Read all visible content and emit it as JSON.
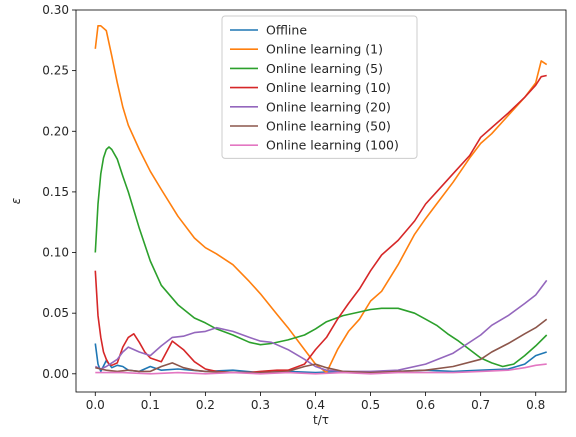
{
  "chart_data": {
    "type": "line",
    "xlabel": "t/τ",
    "ylabel": "ε",
    "xlim": [
      -0.035,
      0.855
    ],
    "ylim": [
      -0.015,
      0.3
    ],
    "xticks": [
      0.0,
      0.1,
      0.2,
      0.3,
      0.4,
      0.5,
      0.6,
      0.7,
      0.8
    ],
    "xtick_labels": [
      "0.0",
      "0.1",
      "0.2",
      "0.3",
      "0.4",
      "0.5",
      "0.6",
      "0.7",
      "0.8"
    ],
    "yticks": [
      0.0,
      0.05,
      0.1,
      0.15,
      0.2,
      0.25,
      0.3
    ],
    "ytick_labels": [
      "0.00",
      "0.05",
      "0.10",
      "0.15",
      "0.20",
      "0.25",
      "0.30"
    ],
    "grid": false,
    "legend_position": "top-center",
    "series": [
      {
        "name": "Offline",
        "color": "#1f77b4",
        "x": [
          0.0,
          0.005,
          0.01,
          0.02,
          0.03,
          0.04,
          0.05,
          0.06,
          0.08,
          0.1,
          0.12,
          0.15,
          0.2,
          0.25,
          0.3,
          0.35,
          0.4,
          0.45,
          0.5,
          0.55,
          0.6,
          0.65,
          0.7,
          0.75,
          0.78,
          0.8,
          0.82
        ],
        "y": [
          0.025,
          0.008,
          0.002,
          0.011,
          0.005,
          0.007,
          0.006,
          0.003,
          0.002,
          0.006,
          0.003,
          0.004,
          0.002,
          0.003,
          0.001,
          0.002,
          0.001,
          0.002,
          0.001,
          0.002,
          0.003,
          0.002,
          0.003,
          0.004,
          0.008,
          0.015,
          0.018
        ]
      },
      {
        "name": "Online learning (1)",
        "color": "#ff7f0e",
        "x": [
          0.0,
          0.005,
          0.01,
          0.02,
          0.03,
          0.04,
          0.05,
          0.06,
          0.08,
          0.1,
          0.12,
          0.15,
          0.18,
          0.2,
          0.22,
          0.25,
          0.28,
          0.3,
          0.33,
          0.35,
          0.38,
          0.4,
          0.42,
          0.44,
          0.46,
          0.48,
          0.5,
          0.52,
          0.55,
          0.58,
          0.6,
          0.62,
          0.65,
          0.68,
          0.7,
          0.72,
          0.75,
          0.78,
          0.8,
          0.81,
          0.82
        ],
        "y": [
          0.268,
          0.287,
          0.287,
          0.283,
          0.262,
          0.24,
          0.22,
          0.205,
          0.185,
          0.167,
          0.152,
          0.13,
          0.112,
          0.104,
          0.099,
          0.09,
          0.076,
          0.066,
          0.049,
          0.038,
          0.02,
          0.008,
          0.001,
          0.02,
          0.035,
          0.045,
          0.06,
          0.068,
          0.09,
          0.115,
          0.128,
          0.14,
          0.158,
          0.178,
          0.19,
          0.198,
          0.213,
          0.228,
          0.24,
          0.258,
          0.255
        ]
      },
      {
        "name": "Online learning (5)",
        "color": "#2ca02c",
        "x": [
          0.0,
          0.005,
          0.01,
          0.015,
          0.02,
          0.025,
          0.03,
          0.04,
          0.05,
          0.06,
          0.08,
          0.1,
          0.12,
          0.15,
          0.18,
          0.2,
          0.22,
          0.25,
          0.28,
          0.3,
          0.32,
          0.35,
          0.38,
          0.4,
          0.42,
          0.45,
          0.48,
          0.5,
          0.52,
          0.55,
          0.58,
          0.6,
          0.62,
          0.64,
          0.66,
          0.68,
          0.7,
          0.72,
          0.74,
          0.76,
          0.78,
          0.8,
          0.82
        ],
        "y": [
          0.1,
          0.14,
          0.165,
          0.178,
          0.185,
          0.187,
          0.185,
          0.177,
          0.163,
          0.15,
          0.12,
          0.093,
          0.073,
          0.057,
          0.046,
          0.042,
          0.037,
          0.032,
          0.026,
          0.024,
          0.025,
          0.028,
          0.032,
          0.037,
          0.043,
          0.048,
          0.051,
          0.053,
          0.054,
          0.054,
          0.05,
          0.045,
          0.04,
          0.033,
          0.027,
          0.02,
          0.013,
          0.009,
          0.006,
          0.008,
          0.015,
          0.023,
          0.032
        ]
      },
      {
        "name": "Online learning (10)",
        "color": "#d62728",
        "x": [
          0.0,
          0.005,
          0.01,
          0.015,
          0.02,
          0.025,
          0.03,
          0.04,
          0.05,
          0.06,
          0.07,
          0.08,
          0.09,
          0.1,
          0.12,
          0.14,
          0.16,
          0.18,
          0.2,
          0.22,
          0.25,
          0.28,
          0.3,
          0.33,
          0.35,
          0.38,
          0.4,
          0.42,
          0.44,
          0.46,
          0.48,
          0.5,
          0.52,
          0.55,
          0.58,
          0.6,
          0.62,
          0.65,
          0.68,
          0.7,
          0.72,
          0.75,
          0.78,
          0.8,
          0.81,
          0.82
        ],
        "y": [
          0.085,
          0.048,
          0.03,
          0.018,
          0.012,
          0.008,
          0.007,
          0.009,
          0.022,
          0.03,
          0.033,
          0.026,
          0.018,
          0.013,
          0.01,
          0.027,
          0.02,
          0.01,
          0.004,
          0.002,
          0.001,
          0.001,
          0.002,
          0.003,
          0.003,
          0.008,
          0.02,
          0.03,
          0.045,
          0.058,
          0.07,
          0.085,
          0.098,
          0.11,
          0.126,
          0.14,
          0.15,
          0.165,
          0.18,
          0.195,
          0.203,
          0.215,
          0.228,
          0.238,
          0.245,
          0.246
        ]
      },
      {
        "name": "Online learning (20)",
        "color": "#9467bd",
        "x": [
          0.0,
          0.01,
          0.02,
          0.03,
          0.04,
          0.05,
          0.06,
          0.08,
          0.1,
          0.12,
          0.14,
          0.16,
          0.18,
          0.2,
          0.22,
          0.25,
          0.28,
          0.3,
          0.32,
          0.35,
          0.38,
          0.4,
          0.42,
          0.45,
          0.48,
          0.5,
          0.55,
          0.6,
          0.65,
          0.7,
          0.72,
          0.75,
          0.78,
          0.8,
          0.82
        ],
        "y": [
          0.006,
          0.004,
          0.006,
          0.009,
          0.012,
          0.018,
          0.022,
          0.018,
          0.015,
          0.023,
          0.03,
          0.031,
          0.034,
          0.035,
          0.038,
          0.035,
          0.03,
          0.027,
          0.026,
          0.02,
          0.012,
          0.006,
          0.003,
          0.002,
          0.002,
          0.002,
          0.003,
          0.008,
          0.017,
          0.032,
          0.04,
          0.048,
          0.058,
          0.065,
          0.077
        ]
      },
      {
        "name": "Online learning (50)",
        "color": "#8c564b",
        "x": [
          0.0,
          0.01,
          0.02,
          0.04,
          0.06,
          0.08,
          0.1,
          0.12,
          0.14,
          0.16,
          0.18,
          0.2,
          0.25,
          0.3,
          0.35,
          0.38,
          0.4,
          0.42,
          0.45,
          0.5,
          0.55,
          0.6,
          0.65,
          0.7,
          0.72,
          0.75,
          0.78,
          0.8,
          0.82
        ],
        "y": [
          0.005,
          0.004,
          0.003,
          0.002,
          0.003,
          0.002,
          0.002,
          0.006,
          0.009,
          0.005,
          0.003,
          0.002,
          0.001,
          0.001,
          0.002,
          0.006,
          0.008,
          0.005,
          0.002,
          0.001,
          0.002,
          0.003,
          0.006,
          0.012,
          0.018,
          0.025,
          0.033,
          0.038,
          0.045
        ]
      },
      {
        "name": "Online learning (100)",
        "color": "#e377c2",
        "x": [
          0.0,
          0.05,
          0.1,
          0.15,
          0.2,
          0.25,
          0.3,
          0.35,
          0.4,
          0.45,
          0.5,
          0.55,
          0.6,
          0.65,
          0.7,
          0.75,
          0.78,
          0.8,
          0.82
        ],
        "y": [
          0.001,
          0.001,
          0.0,
          0.001,
          0.0,
          0.001,
          0.0,
          0.001,
          0.0,
          0.001,
          0.0,
          0.001,
          0.001,
          0.001,
          0.002,
          0.003,
          0.005,
          0.007,
          0.008
        ]
      }
    ]
  }
}
